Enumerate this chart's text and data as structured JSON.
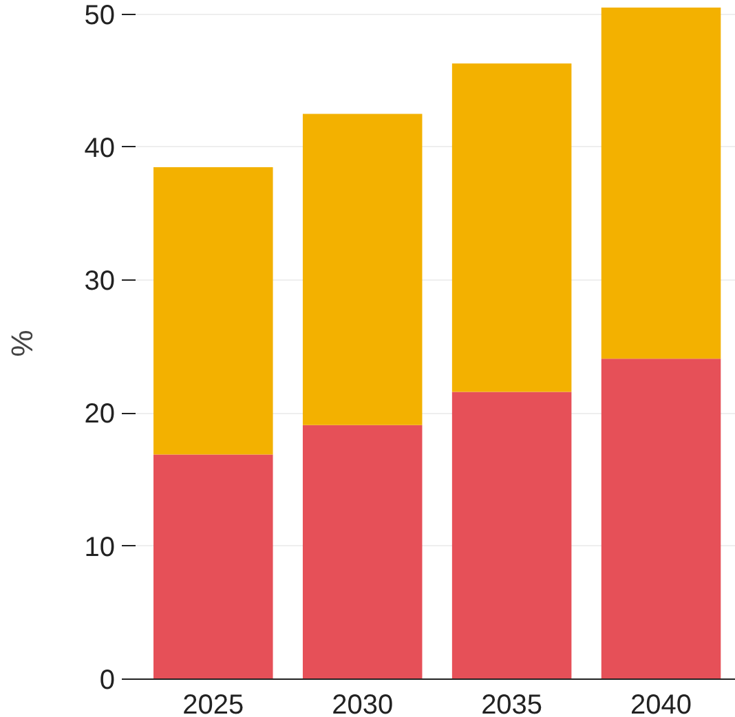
{
  "chart_data": {
    "type": "bar",
    "ylabel": "%",
    "categories": [
      "2025",
      "2030",
      "2035",
      "2040"
    ],
    "stacked": true,
    "series": [
      {
        "color": "#e65058",
        "values": [
          16.9,
          19.1,
          21.6,
          24.1
        ]
      },
      {
        "color": "#f3b100",
        "values": [
          21.6,
          23.4,
          24.7,
          26.4
        ]
      }
    ],
    "ylim": [
      0,
      50.5
    ],
    "yticks": [
      0,
      10,
      20,
      30,
      40,
      50
    ],
    "grid": "y"
  }
}
